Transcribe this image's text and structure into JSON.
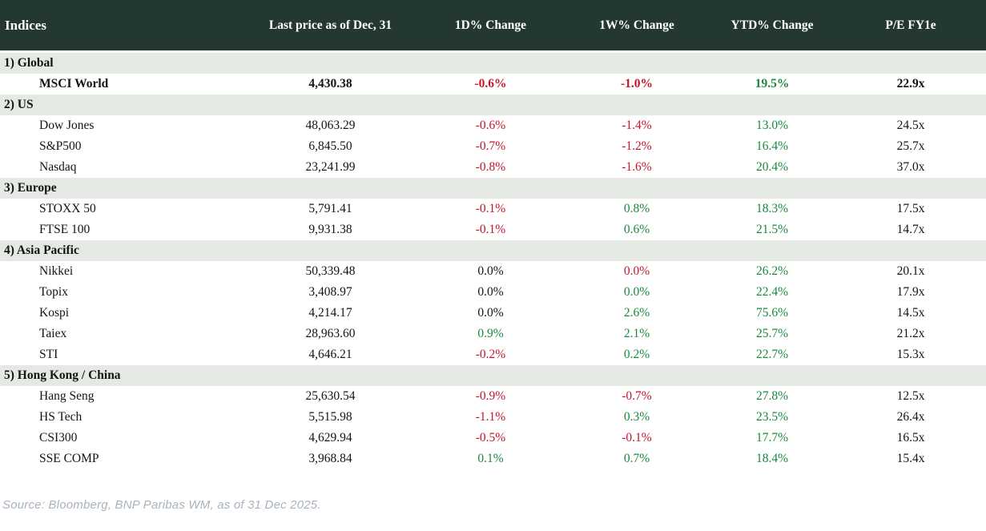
{
  "colors": {
    "header_bg": "#223830",
    "section_bg": "#e5e9e4",
    "negative": "#c6152b",
    "positive": "#188a3d",
    "text": "#141414",
    "source_text": "#a9b3bd"
  },
  "table": {
    "columns": [
      "Indices",
      "Last price as of Dec, 31",
      "1D% Change",
      "1W% Change",
      "YTD% Change",
      "P/E FY1e"
    ],
    "sections": [
      {
        "label": "1) Global",
        "rows": [
          {
            "name": "MSCI World",
            "last_price": "4,430.38",
            "change_1d": {
              "value": "-0.6%",
              "color": "red"
            },
            "change_1w": {
              "value": "-1.0%",
              "color": "red"
            },
            "change_ytd": {
              "value": "19.5%",
              "color": "green"
            },
            "pe_fy1e": "22.9x",
            "emphasis": true
          }
        ]
      },
      {
        "label": "2) US",
        "rows": [
          {
            "name": "Dow Jones",
            "last_price": "48,063.29",
            "change_1d": {
              "value": "-0.6%",
              "color": "red"
            },
            "change_1w": {
              "value": "-1.4%",
              "color": "red"
            },
            "change_ytd": {
              "value": "13.0%",
              "color": "green"
            },
            "pe_fy1e": "24.5x",
            "emphasis": false
          },
          {
            "name": "S&P500",
            "last_price": "6,845.50",
            "change_1d": {
              "value": "-0.7%",
              "color": "red"
            },
            "change_1w": {
              "value": "-1.2%",
              "color": "red"
            },
            "change_ytd": {
              "value": "16.4%",
              "color": "green"
            },
            "pe_fy1e": "25.7x",
            "emphasis": false
          },
          {
            "name": "Nasdaq",
            "last_price": "23,241.99",
            "change_1d": {
              "value": "-0.8%",
              "color": "red"
            },
            "change_1w": {
              "value": "-1.6%",
              "color": "red"
            },
            "change_ytd": {
              "value": "20.4%",
              "color": "green"
            },
            "pe_fy1e": "37.0x",
            "emphasis": false
          }
        ]
      },
      {
        "label": "3) Europe",
        "rows": [
          {
            "name": "STOXX 50",
            "last_price": "5,791.41",
            "change_1d": {
              "value": "-0.1%",
              "color": "red"
            },
            "change_1w": {
              "value": "0.8%",
              "color": "green"
            },
            "change_ytd": {
              "value": "18.3%",
              "color": "green"
            },
            "pe_fy1e": "17.5x",
            "emphasis": false
          },
          {
            "name": "FTSE 100",
            "last_price": "9,931.38",
            "change_1d": {
              "value": "-0.1%",
              "color": "red"
            },
            "change_1w": {
              "value": "0.6%",
              "color": "green"
            },
            "change_ytd": {
              "value": "21.5%",
              "color": "green"
            },
            "pe_fy1e": "14.7x",
            "emphasis": false
          }
        ]
      },
      {
        "label": "4) Asia Pacific",
        "rows": [
          {
            "name": "Nikkei",
            "last_price": "50,339.48",
            "change_1d": {
              "value": "0.0%",
              "color": "black"
            },
            "change_1w": {
              "value": "0.0%",
              "color": "red"
            },
            "change_ytd": {
              "value": "26.2%",
              "color": "green"
            },
            "pe_fy1e": "20.1x",
            "emphasis": false
          },
          {
            "name": "Topix",
            "last_price": "3,408.97",
            "change_1d": {
              "value": "0.0%",
              "color": "black"
            },
            "change_1w": {
              "value": "0.0%",
              "color": "green"
            },
            "change_ytd": {
              "value": "22.4%",
              "color": "green"
            },
            "pe_fy1e": "17.9x",
            "emphasis": false
          },
          {
            "name": "Kospi",
            "last_price": "4,214.17",
            "change_1d": {
              "value": "0.0%",
              "color": "black"
            },
            "change_1w": {
              "value": "2.6%",
              "color": "green"
            },
            "change_ytd": {
              "value": "75.6%",
              "color": "green"
            },
            "pe_fy1e": "14.5x",
            "emphasis": false
          },
          {
            "name": "Taiex",
            "last_price": "28,963.60",
            "change_1d": {
              "value": "0.9%",
              "color": "green"
            },
            "change_1w": {
              "value": "2.1%",
              "color": "green"
            },
            "change_ytd": {
              "value": "25.7%",
              "color": "green"
            },
            "pe_fy1e": "21.2x",
            "emphasis": false
          },
          {
            "name": "STI",
            "last_price": "4,646.21",
            "change_1d": {
              "value": "-0.2%",
              "color": "red"
            },
            "change_1w": {
              "value": "0.2%",
              "color": "green"
            },
            "change_ytd": {
              "value": "22.7%",
              "color": "green"
            },
            "pe_fy1e": "15.3x",
            "emphasis": false
          }
        ]
      },
      {
        "label": "5) Hong Kong / China",
        "rows": [
          {
            "name": "Hang Seng",
            "last_price": "25,630.54",
            "change_1d": {
              "value": "-0.9%",
              "color": "red"
            },
            "change_1w": {
              "value": "-0.7%",
              "color": "red"
            },
            "change_ytd": {
              "value": "27.8%",
              "color": "green"
            },
            "pe_fy1e": "12.5x",
            "emphasis": false
          },
          {
            "name": "HS Tech",
            "last_price": "5,515.98",
            "change_1d": {
              "value": "-1.1%",
              "color": "red"
            },
            "change_1w": {
              "value": "0.3%",
              "color": "green"
            },
            "change_ytd": {
              "value": "23.5%",
              "color": "green"
            },
            "pe_fy1e": "26.4x",
            "emphasis": false
          },
          {
            "name": "CSI300",
            "last_price": "4,629.94",
            "change_1d": {
              "value": "-0.5%",
              "color": "red"
            },
            "change_1w": {
              "value": "-0.1%",
              "color": "red"
            },
            "change_ytd": {
              "value": "17.7%",
              "color": "green"
            },
            "pe_fy1e": "16.5x",
            "emphasis": false
          },
          {
            "name": "SSE COMP",
            "last_price": "3,968.84",
            "change_1d": {
              "value": "0.1%",
              "color": "green"
            },
            "change_1w": {
              "value": "0.7%",
              "color": "green"
            },
            "change_ytd": {
              "value": "18.4%",
              "color": "green"
            },
            "pe_fy1e": "15.4x",
            "emphasis": false
          }
        ]
      }
    ]
  },
  "footer": {
    "source": "Source: Bloomberg, BNP Paribas WM, as of 31 Dec 2025."
  }
}
